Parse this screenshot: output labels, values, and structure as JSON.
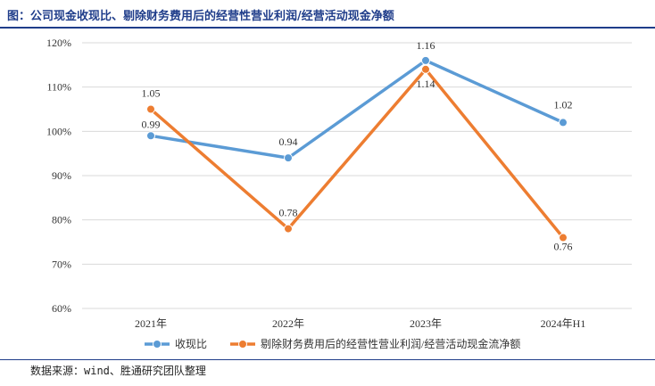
{
  "header": {
    "title": "图：公司现金收现比、剔除财务费用后的经营性营业利润/经营活动现金净额"
  },
  "footer": {
    "source": "数据来源：wind、胜通研究团队整理"
  },
  "chart_data": {
    "type": "line",
    "categories": [
      "2021年",
      "2022年",
      "2023年",
      "2024年H1"
    ],
    "yticks": [
      "120%",
      "110%",
      "100%",
      "90%",
      "80%",
      "70%",
      "60%"
    ],
    "ylim": [
      0.6,
      1.2
    ],
    "grid": true,
    "legend_position": "bottom",
    "series": [
      {
        "name": "收现比",
        "color": "#5b9bd5",
        "values": [
          0.99,
          0.94,
          1.16,
          1.02
        ],
        "labels": [
          "0.99",
          "0.94",
          "1.16",
          "1.02"
        ]
      },
      {
        "name": "剔除财务费用后的经营性营业利润/经营活动现金流净额",
        "color": "#ed7d31",
        "values": [
          1.05,
          0.78,
          1.14,
          0.76
        ],
        "labels": [
          "1.05",
          "0.78",
          "1.14",
          "0.76"
        ]
      }
    ]
  }
}
